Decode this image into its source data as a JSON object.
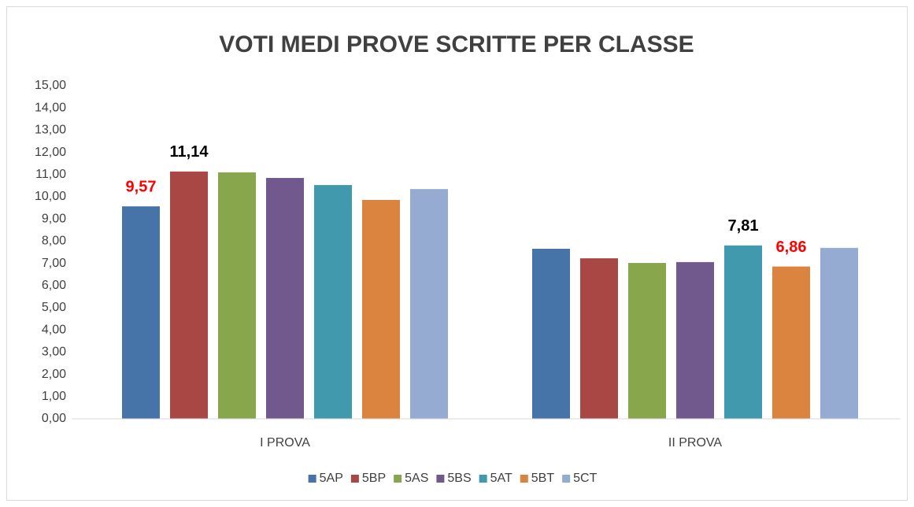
{
  "chart_data": {
    "type": "bar",
    "title": "VOTI MEDI PROVE SCRITTE PER CLASSE",
    "categories": [
      "I PROVA",
      "II PROVA"
    ],
    "series": [
      {
        "name": "5AP",
        "color": "#4673a8",
        "values": [
          9.57,
          7.66
        ],
        "value_labels": [
          "9,57",
          null
        ],
        "label_colors": [
          "#ff0000",
          null
        ]
      },
      {
        "name": "5BP",
        "color": "#a94744",
        "values": [
          11.14,
          7.23
        ],
        "value_labels": [
          "11,14",
          null
        ],
        "label_colors": [
          "#000000",
          null
        ]
      },
      {
        "name": "5AS",
        "color": "#88a64c",
        "values": [
          11.1,
          7.02
        ]
      },
      {
        "name": "5BS",
        "color": "#71598e",
        "values": [
          10.85,
          7.06
        ]
      },
      {
        "name": "5AT",
        "color": "#4199ae",
        "values": [
          10.53,
          7.81
        ],
        "value_labels": [
          null,
          "7,81"
        ],
        "label_colors": [
          null,
          "#000000"
        ]
      },
      {
        "name": "5BT",
        "color": "#db843f",
        "values": [
          9.86,
          6.86
        ],
        "value_labels": [
          null,
          "6,86"
        ],
        "label_colors": [
          null,
          "#ff0000"
        ]
      },
      {
        "name": "5CT",
        "color": "#95abd2",
        "values": [
          10.35,
          7.7
        ]
      }
    ],
    "ylim": [
      0,
      15
    ],
    "yticks": [
      {
        "value": 0,
        "label": "0,00"
      },
      {
        "value": 1,
        "label": "1,00"
      },
      {
        "value": 2,
        "label": "2,00"
      },
      {
        "value": 3,
        "label": "3,00"
      },
      {
        "value": 4,
        "label": "4,00"
      },
      {
        "value": 5,
        "label": "5,00"
      },
      {
        "value": 6,
        "label": "6,00"
      },
      {
        "value": 7,
        "label": "7,00"
      },
      {
        "value": 8,
        "label": "8,00"
      },
      {
        "value": 9,
        "label": "9,00"
      },
      {
        "value": 10,
        "label": "10,00"
      },
      {
        "value": 11,
        "label": "11,00"
      },
      {
        "value": 12,
        "label": "12,00"
      },
      {
        "value": 13,
        "label": "13,00"
      },
      {
        "value": 14,
        "label": "14,00"
      },
      {
        "value": 15,
        "label": "15,00"
      }
    ],
    "grid": false,
    "legend": "bottom"
  }
}
